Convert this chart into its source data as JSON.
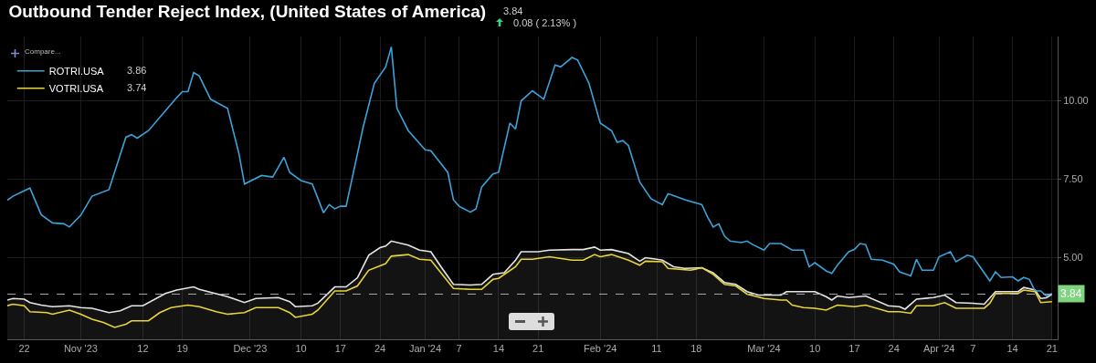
{
  "chart_data": {
    "type": "line",
    "title": "Outbound Tender Reject Index, (United States of America)",
    "annotations": [
      "3.84",
      "0.08 ( 2.13% )",
      "Compare...",
      "3.86",
      "3.74"
    ],
    "xlim": [
      "2023-10-19",
      "2024-04-22"
    ],
    "xticks": [
      {
        "value": "2023-10-22",
        "label": "22"
      },
      {
        "value": "2023-11-01",
        "label": "Nov '23"
      },
      {
        "value": "2023-11-12",
        "label": "12"
      },
      {
        "value": "2023-11-19",
        "label": "19"
      },
      {
        "value": "2023-12-01",
        "label": "Dec '23"
      },
      {
        "value": "2023-12-10",
        "label": "10"
      },
      {
        "value": "2023-12-17",
        "label": "17"
      },
      {
        "value": "2023-12-24",
        "label": "24"
      },
      {
        "value": "2024-01-01",
        "label": "Jan '24"
      },
      {
        "value": "2024-01-07",
        "label": "7"
      },
      {
        "value": "2024-01-14",
        "label": "14"
      },
      {
        "value": "2024-01-21",
        "label": "21"
      },
      {
        "value": "2024-02-01",
        "label": "Feb '24"
      },
      {
        "value": "2024-02-11",
        "label": "11"
      },
      {
        "value": "2024-02-18",
        "label": "18"
      },
      {
        "value": "2024-03-01",
        "label": "Mar '24"
      },
      {
        "value": "2024-03-10",
        "label": "10"
      },
      {
        "value": "2024-03-17",
        "label": "17"
      },
      {
        "value": "2024-03-24",
        "label": "24"
      },
      {
        "value": "2024-04-01",
        "label": "Apr '24"
      },
      {
        "value": "2024-04-07",
        "label": "7"
      },
      {
        "value": "2024-04-14",
        "label": "14"
      },
      {
        "value": "2024-04-21",
        "label": "21"
      }
    ],
    "ylim": [
      2.4,
      12.05
    ],
    "yticks": [
      {
        "value": 5,
        "label": "5.00"
      },
      {
        "value": 7.5,
        "label": "7.50"
      },
      {
        "value": 10,
        "label": "10.00"
      }
    ],
    "grid": true,
    "legend": "top left",
    "ref_lines": [
      {
        "axis": "y",
        "value": 3.84,
        "label": "3.84",
        "line_style": "dashed"
      }
    ],
    "series": [
      {
        "type": "area",
        "color": "#e6e6e6",
        "x": [
          "2023-10-19",
          "2023-10-20",
          "2023-10-22",
          "2023-10-23",
          "2023-10-25",
          "2023-10-27",
          "2023-10-30",
          "2023-11-01",
          "2023-11-03",
          "2023-11-06",
          "2023-11-08",
          "2023-11-10",
          "2023-11-12",
          "2023-11-16",
          "2023-11-18",
          "2023-11-21",
          "2023-11-22",
          "2023-11-27",
          "2023-11-30",
          "2023-12-02",
          "2023-12-06",
          "2023-12-08",
          "2023-12-09",
          "2023-12-12",
          "2023-12-13",
          "2023-12-16",
          "2023-12-18",
          "2023-12-20",
          "2023-12-22",
          "2023-12-24",
          "2023-12-25",
          "2023-12-26",
          "2023-12-29",
          "2023-12-31",
          "2024-01-02",
          "2024-01-04",
          "2024-01-06",
          "2024-01-09",
          "2024-01-11",
          "2024-01-13",
          "2024-01-15",
          "2024-01-17",
          "2024-01-18",
          "2024-01-21",
          "2024-01-23",
          "2024-01-27",
          "2024-01-29",
          "2024-01-31",
          "2024-02-01",
          "2024-02-03",
          "2024-02-06",
          "2024-02-08",
          "2024-02-09",
          "2024-02-11",
          "2024-02-12",
          "2024-02-14",
          "2024-02-16",
          "2024-02-19",
          "2024-02-21",
          "2024-02-23",
          "2024-02-25",
          "2024-02-27",
          "2024-02-29",
          "2024-03-04",
          "2024-03-05",
          "2024-03-07",
          "2024-03-10",
          "2024-03-12",
          "2024-03-13",
          "2024-03-14",
          "2024-03-16",
          "2024-03-19",
          "2024-03-23",
          "2024-03-25",
          "2024-03-26",
          "2024-03-28",
          "2024-03-31",
          "2024-04-02",
          "2024-04-04",
          "2024-04-07",
          "2024-04-09",
          "2024-04-11",
          "2024-04-15",
          "2024-04-16",
          "2024-04-18",
          "2024-04-19",
          "2024-04-20",
          "2024-04-21"
        ],
        "values": [
          3.65,
          3.7,
          3.68,
          3.57,
          3.49,
          3.44,
          3.47,
          3.41,
          3.39,
          3.25,
          3.31,
          3.47,
          3.47,
          3.86,
          3.97,
          4.07,
          3.99,
          3.76,
          3.57,
          3.7,
          3.73,
          3.6,
          3.44,
          3.47,
          3.55,
          4.07,
          4.07,
          4.36,
          5.08,
          5.32,
          5.37,
          5.53,
          5.4,
          5.24,
          5.19,
          4.66,
          4.15,
          4.13,
          4.15,
          4.47,
          4.52,
          4.92,
          5.19,
          5.19,
          5.24,
          5.26,
          5.26,
          5.34,
          5.24,
          5.26,
          5.13,
          4.89,
          5.0,
          4.95,
          4.92,
          4.71,
          4.66,
          4.68,
          4.52,
          4.21,
          4.15,
          3.92,
          3.81,
          3.81,
          3.92,
          3.92,
          3.92,
          3.76,
          3.65,
          3.78,
          3.73,
          3.78,
          3.47,
          3.44,
          3.36,
          3.68,
          3.73,
          3.81,
          3.57,
          3.55,
          3.52,
          3.92,
          3.92,
          4.05,
          3.97,
          3.7,
          3.72,
          3.84
        ]
      },
      {
        "name": "ROTRI.USA",
        "color": "#3aa3d9",
        "x": [
          "2023-10-19",
          "2023-10-20",
          "2023-10-23",
          "2023-10-25",
          "2023-10-27",
          "2023-10-29",
          "2023-10-30",
          "2023-11-01",
          "2023-11-03",
          "2023-11-06",
          "2023-11-09",
          "2023-11-10",
          "2023-11-11",
          "2023-11-13",
          "2023-11-18",
          "2023-11-19",
          "2023-11-20",
          "2023-11-21",
          "2023-11-22",
          "2023-11-24",
          "2023-11-27",
          "2023-11-29",
          "2023-11-30",
          "2023-12-03",
          "2023-12-05",
          "2023-12-07",
          "2023-12-08",
          "2023-12-10",
          "2023-12-12",
          "2023-12-14",
          "2023-12-15",
          "2023-12-16",
          "2023-12-17",
          "2023-12-18",
          "2023-12-21",
          "2023-12-23",
          "2023-12-25",
          "2023-12-26",
          "2023-12-27",
          "2023-12-29",
          "2024-01-01",
          "2024-01-02",
          "2024-01-05",
          "2024-01-06",
          "2024-01-07",
          "2024-01-09",
          "2024-01-10",
          "2024-01-11",
          "2024-01-13",
          "2024-01-14",
          "2024-01-16",
          "2024-01-17",
          "2024-01-18",
          "2024-01-20",
          "2024-01-22",
          "2024-01-24",
          "2024-01-25",
          "2024-01-27",
          "2024-01-28",
          "2024-01-30",
          "2024-02-01",
          "2024-02-03",
          "2024-02-04",
          "2024-02-05",
          "2024-02-06",
          "2024-02-08",
          "2024-02-10",
          "2024-02-12",
          "2024-02-13",
          "2024-02-14",
          "2024-02-16",
          "2024-02-19",
          "2024-02-20",
          "2024-02-21",
          "2024-02-22",
          "2024-02-23",
          "2024-02-24",
          "2024-02-26",
          "2024-02-27",
          "2024-02-28",
          "2024-03-01",
          "2024-03-02",
          "2024-03-04",
          "2024-03-06",
          "2024-03-08",
          "2024-03-09",
          "2024-03-10",
          "2024-03-12",
          "2024-03-13",
          "2024-03-14",
          "2024-03-16",
          "2024-03-17",
          "2024-03-18",
          "2024-03-19",
          "2024-03-20",
          "2024-03-22",
          "2024-03-24",
          "2024-03-25",
          "2024-03-27",
          "2024-03-28",
          "2024-03-29",
          "2024-03-31",
          "2024-04-01",
          "2024-04-03",
          "2024-04-04",
          "2024-04-06",
          "2024-04-07",
          "2024-04-10",
          "2024-04-11",
          "2024-04-12",
          "2024-04-14",
          "2024-04-15",
          "2024-04-16",
          "2024-04-17",
          "2024-04-18",
          "2024-04-19",
          "2024-04-20",
          "2024-04-21"
        ],
        "values": [
          6.83,
          6.96,
          7.22,
          6.37,
          6.11,
          6.08,
          5.98,
          6.35,
          6.96,
          7.17,
          8.84,
          8.92,
          8.81,
          9.05,
          10.1,
          10.29,
          10.29,
          10.9,
          10.79,
          10.05,
          9.76,
          8.33,
          7.35,
          7.62,
          7.57,
          8.2,
          7.72,
          7.46,
          7.35,
          6.43,
          6.69,
          6.56,
          6.64,
          6.64,
          9.15,
          10.56,
          11.08,
          11.72,
          9.76,
          9.05,
          8.44,
          8.41,
          7.72,
          6.85,
          6.64,
          6.45,
          6.56,
          7.25,
          7.67,
          7.72,
          9.29,
          9.1,
          10.0,
          10.32,
          10.05,
          11.14,
          11.08,
          11.38,
          11.3,
          10.56,
          9.29,
          9.05,
          8.68,
          8.73,
          8.57,
          7.41,
          6.88,
          6.69,
          7.04,
          6.98,
          6.85,
          6.69,
          6.3,
          5.98,
          6.08,
          5.69,
          5.53,
          5.48,
          5.53,
          5.42,
          5.24,
          5.45,
          5.45,
          5.24,
          5.24,
          4.71,
          4.84,
          4.58,
          4.5,
          4.76,
          5.19,
          5.26,
          5.45,
          5.42,
          4.95,
          4.92,
          4.79,
          4.55,
          4.42,
          4.95,
          4.6,
          4.6,
          5.03,
          5.19,
          4.87,
          5.08,
          5.03,
          4.26,
          4.55,
          4.37,
          4.39,
          4.26,
          4.37,
          4.31,
          3.94,
          3.94,
          3.78,
          3.86
        ]
      },
      {
        "name": "VOTRI.USA",
        "color": "#e8d53a",
        "x": [
          "2023-10-19",
          "2023-10-20",
          "2023-10-22",
          "2023-10-23",
          "2023-10-26",
          "2023-10-27",
          "2023-10-30",
          "2023-11-01",
          "2023-11-03",
          "2023-11-05",
          "2023-11-07",
          "2023-11-09",
          "2023-11-10",
          "2023-11-13",
          "2023-11-15",
          "2023-11-17",
          "2023-11-20",
          "2023-11-22",
          "2023-11-25",
          "2023-11-27",
          "2023-11-30",
          "2023-12-02",
          "2023-12-06",
          "2023-12-08",
          "2023-12-09",
          "2023-12-12",
          "2023-12-13",
          "2023-12-16",
          "2023-12-18",
          "2023-12-20",
          "2023-12-22",
          "2023-12-25",
          "2023-12-26",
          "2023-12-29",
          "2023-12-31",
          "2024-01-02",
          "2024-01-06",
          "2024-01-09",
          "2024-01-11",
          "2024-01-13",
          "2024-01-14",
          "2024-01-17",
          "2024-01-18",
          "2024-01-20",
          "2024-01-23",
          "2024-01-27",
          "2024-01-29",
          "2024-01-31",
          "2024-02-01",
          "2024-02-03",
          "2024-02-06",
          "2024-02-08",
          "2024-02-09",
          "2024-02-12",
          "2024-02-13",
          "2024-02-17",
          "2024-02-19",
          "2024-02-21",
          "2024-02-23",
          "2024-02-25",
          "2024-02-27",
          "2024-03-01",
          "2024-03-04",
          "2024-03-05",
          "2024-03-06",
          "2024-03-08",
          "2024-03-10",
          "2024-03-12",
          "2024-03-14",
          "2024-03-17",
          "2024-03-19",
          "2024-03-23",
          "2024-03-25",
          "2024-03-27",
          "2024-03-28",
          "2024-03-31",
          "2024-04-02",
          "2024-04-04",
          "2024-04-09",
          "2024-04-10",
          "2024-04-11",
          "2024-04-15",
          "2024-04-16",
          "2024-04-18",
          "2024-04-19",
          "2024-04-21"
        ],
        "values": [
          3.47,
          3.52,
          3.47,
          3.28,
          3.25,
          3.2,
          3.33,
          3.2,
          3.04,
          2.94,
          2.78,
          2.88,
          2.99,
          2.99,
          3.25,
          3.41,
          3.49,
          3.44,
          3.28,
          3.2,
          3.25,
          3.41,
          3.41,
          3.25,
          3.1,
          3.2,
          3.33,
          3.94,
          3.94,
          4.1,
          4.6,
          4.81,
          5.05,
          5.1,
          4.95,
          4.92,
          4.02,
          3.99,
          3.99,
          4.31,
          4.34,
          4.71,
          4.95,
          4.95,
          5.03,
          4.92,
          4.92,
          5.1,
          5.03,
          5.1,
          4.92,
          4.76,
          4.89,
          4.87,
          4.66,
          4.6,
          4.68,
          4.47,
          4.15,
          4.1,
          3.84,
          3.7,
          3.65,
          3.65,
          3.49,
          3.41,
          3.39,
          3.33,
          3.49,
          3.44,
          3.49,
          3.28,
          3.28,
          3.23,
          3.47,
          3.47,
          3.57,
          3.39,
          3.39,
          3.55,
          3.86,
          3.86,
          3.97,
          3.92,
          3.57,
          3.6
        ]
      }
    ]
  }
}
